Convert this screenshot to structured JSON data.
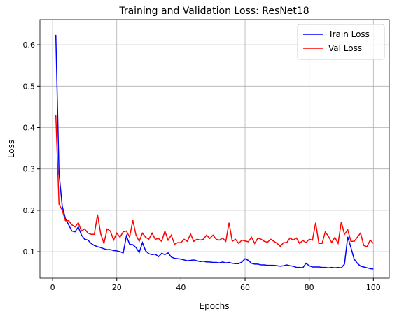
{
  "chart_data": {
    "type": "line",
    "title": "Training and Validation Loss: ResNet18",
    "xlabel": "Epochs",
    "ylabel": "Loss",
    "x": [
      1,
      2,
      3,
      4,
      5,
      6,
      7,
      8,
      9,
      10,
      11,
      12,
      13,
      14,
      15,
      16,
      17,
      18,
      19,
      20,
      21,
      22,
      23,
      24,
      25,
      26,
      27,
      28,
      29,
      30,
      31,
      32,
      33,
      34,
      35,
      36,
      37,
      38,
      39,
      40,
      41,
      42,
      43,
      44,
      45,
      46,
      47,
      48,
      49,
      50,
      51,
      52,
      53,
      54,
      55,
      56,
      57,
      58,
      59,
      60,
      61,
      62,
      63,
      64,
      65,
      66,
      67,
      68,
      69,
      70,
      71,
      72,
      73,
      74,
      75,
      76,
      77,
      78,
      79,
      80,
      81,
      82,
      83,
      84,
      85,
      86,
      87,
      88,
      89,
      90,
      91,
      92,
      93,
      94,
      95,
      96,
      97,
      98,
      99,
      100
    ],
    "series": [
      {
        "name": "Train Loss",
        "color": "#0000ff",
        "values": [
          0.624,
          0.29,
          0.21,
          0.18,
          0.165,
          0.15,
          0.148,
          0.16,
          0.14,
          0.13,
          0.128,
          0.12,
          0.115,
          0.112,
          0.11,
          0.107,
          0.105,
          0.105,
          0.103,
          0.102,
          0.1,
          0.097,
          0.138,
          0.118,
          0.117,
          0.11,
          0.098,
          0.122,
          0.102,
          0.095,
          0.093,
          0.094,
          0.088,
          0.096,
          0.093,
          0.097,
          0.087,
          0.084,
          0.083,
          0.082,
          0.08,
          0.078,
          0.079,
          0.08,
          0.078,
          0.076,
          0.077,
          0.075,
          0.075,
          0.074,
          0.074,
          0.073,
          0.075,
          0.073,
          0.074,
          0.072,
          0.071,
          0.071,
          0.075,
          0.083,
          0.079,
          0.072,
          0.07,
          0.07,
          0.068,
          0.068,
          0.067,
          0.067,
          0.067,
          0.066,
          0.065,
          0.066,
          0.068,
          0.066,
          0.065,
          0.062,
          0.062,
          0.061,
          0.072,
          0.066,
          0.063,
          0.063,
          0.063,
          0.062,
          0.062,
          0.061,
          0.062,
          0.061,
          0.062,
          0.061,
          0.07,
          0.136,
          0.11,
          0.082,
          0.072,
          0.065,
          0.063,
          0.061,
          0.059,
          0.058
        ]
      },
      {
        "name": "Val Loss",
        "color": "#ff0000",
        "values": [
          0.43,
          0.215,
          0.2,
          0.175,
          0.175,
          0.165,
          0.16,
          0.17,
          0.15,
          0.155,
          0.145,
          0.142,
          0.142,
          0.19,
          0.143,
          0.12,
          0.155,
          0.15,
          0.128,
          0.145,
          0.135,
          0.148,
          0.15,
          0.135,
          0.176,
          0.14,
          0.125,
          0.145,
          0.135,
          0.13,
          0.145,
          0.13,
          0.132,
          0.125,
          0.15,
          0.128,
          0.14,
          0.118,
          0.122,
          0.122,
          0.13,
          0.125,
          0.143,
          0.125,
          0.13,
          0.128,
          0.13,
          0.14,
          0.132,
          0.14,
          0.13,
          0.128,
          0.133,
          0.125,
          0.17,
          0.125,
          0.13,
          0.12,
          0.128,
          0.126,
          0.124,
          0.135,
          0.12,
          0.133,
          0.13,
          0.125,
          0.123,
          0.13,
          0.125,
          0.12,
          0.113,
          0.122,
          0.122,
          0.133,
          0.128,
          0.133,
          0.12,
          0.127,
          0.122,
          0.13,
          0.128,
          0.17,
          0.12,
          0.12,
          0.148,
          0.137,
          0.122,
          0.135,
          0.12,
          0.172,
          0.142,
          0.153,
          0.125,
          0.125,
          0.135,
          0.145,
          0.115,
          0.112,
          0.128,
          0.12
        ]
      }
    ],
    "xlim": [
      -3.95,
      104.95
    ],
    "ylim": [
      0.036,
      0.661
    ],
    "xticks": [
      0,
      20,
      40,
      60,
      80,
      100
    ],
    "yticks": [
      0.1,
      0.2,
      0.3,
      0.4,
      0.5,
      0.6
    ],
    "grid": true,
    "legend": "upper right"
  }
}
